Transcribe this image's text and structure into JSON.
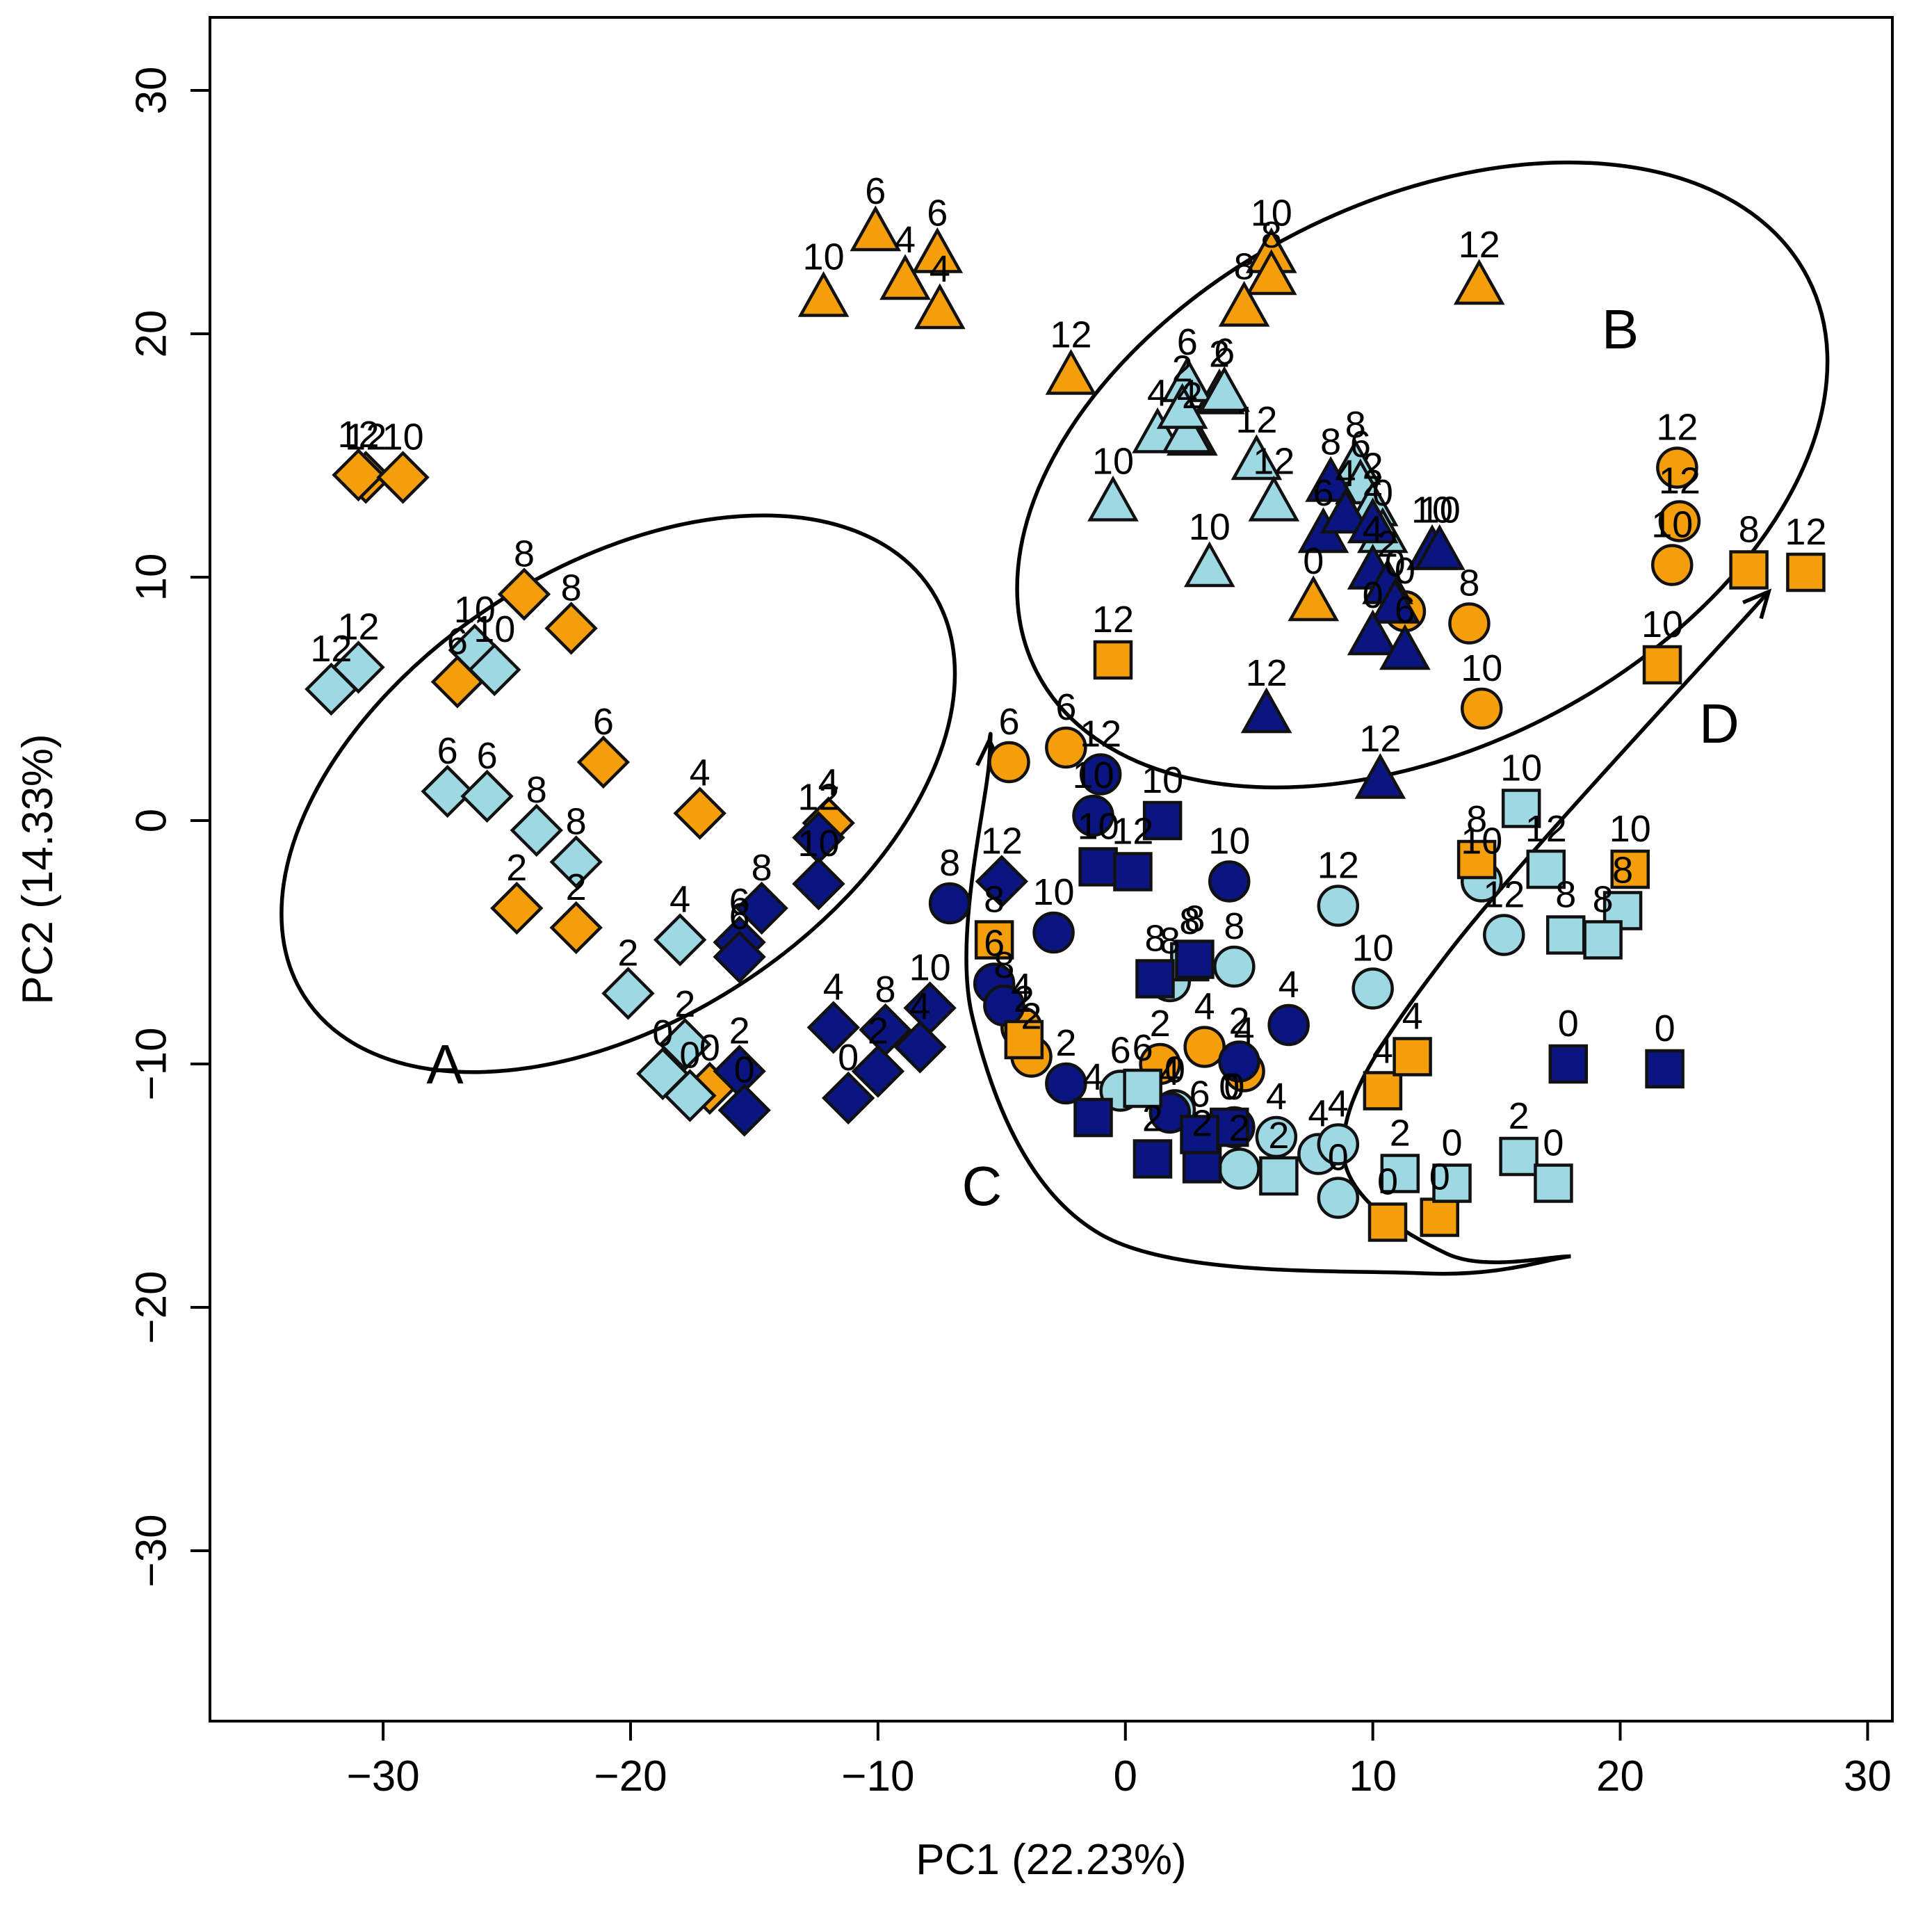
{
  "chart_data": {
    "type": "scatter",
    "xlabel": "PC1 (22.23%)",
    "ylabel": "PC2 (14.33%)",
    "xlim": [
      -37,
      31
    ],
    "ylim": [
      -37,
      33
    ],
    "xticks": [
      -30,
      -20,
      -10,
      0,
      10,
      20,
      30
    ],
    "yticks": [
      -30,
      -20,
      -10,
      0,
      10,
      20,
      30
    ],
    "grid": false,
    "colors": {
      "orange": "#F59E0B",
      "lightblue": "#9ED8E2",
      "navy": "#0A1580",
      "outline": "#111111"
    },
    "region_labels": [
      {
        "text": "A",
        "x": -27.5,
        "y": -10.2
      },
      {
        "text": "B",
        "x": 20.0,
        "y": 20.0
      },
      {
        "text": "C",
        "x": -5.8,
        "y": -15.2
      },
      {
        "text": "D",
        "x": 24.0,
        "y": 3.8
      }
    ],
    "ellipses": [
      {
        "name": "A",
        "cx": -20.5,
        "cy": 1.1,
        "rx": 15.1,
        "ry": 9.3,
        "angle_deg": 33
      },
      {
        "name": "B",
        "cx": 12.0,
        "cy": 14.2,
        "rx": 17.5,
        "ry": 11.2,
        "angle_deg": 27
      }
    ],
    "curves": [
      {
        "name": "C",
        "points": [
          [
            18,
            -17.9
          ],
          [
            12,
            -18.6
          ],
          [
            -1,
            -17.0
          ],
          [
            -6.2,
            -8.0
          ],
          [
            -5.5,
            2.5
          ],
          [
            -5.5,
            3.3
          ]
        ],
        "arrow": true
      },
      {
        "name": "D",
        "points": [
          [
            18,
            -17.9
          ],
          [
            13,
            -17.8
          ],
          [
            8.8,
            -13.5
          ],
          [
            13,
            -5.5
          ],
          [
            26.0,
            9.4
          ]
        ],
        "arrow": true
      }
    ],
    "series": [
      {
        "shape": "diamond",
        "color": "orange",
        "points": [
          [
            -30.7,
            14.1,
            "12"
          ],
          [
            -31.0,
            14.2,
            "12"
          ],
          [
            -29.2,
            14.1,
            "10"
          ],
          [
            -24.3,
            9.3,
            "8"
          ],
          [
            -22.4,
            7.9,
            "8"
          ],
          [
            -27.0,
            5.7,
            "6"
          ],
          [
            -21.1,
            2.4,
            "6"
          ],
          [
            -17.2,
            0.3,
            "4"
          ],
          [
            -12.0,
            -0.1,
            "4"
          ],
          [
            -24.6,
            -3.6,
            "2"
          ],
          [
            -22.2,
            -4.4,
            "2"
          ],
          [
            -16.8,
            -11.0,
            "0"
          ]
        ]
      },
      {
        "shape": "diamond",
        "color": "lightblue",
        "points": [
          [
            -31.0,
            6.3,
            "12"
          ],
          [
            -32.1,
            5.4,
            "12"
          ],
          [
            -26.3,
            7.0,
            "10"
          ],
          [
            -25.5,
            6.2,
            "10"
          ],
          [
            -27.4,
            1.2,
            "6"
          ],
          [
            -25.8,
            1.0,
            "6"
          ],
          [
            -23.8,
            -0.4,
            "8"
          ],
          [
            -22.2,
            -1.7,
            "8"
          ],
          [
            -18.0,
            -4.9,
            "4"
          ],
          [
            -20.1,
            -7.1,
            "2"
          ],
          [
            -17.8,
            -9.2,
            "2"
          ],
          [
            -18.7,
            -10.4,
            "0"
          ],
          [
            -17.6,
            -11.3,
            "0"
          ]
        ]
      },
      {
        "shape": "diamond",
        "color": "navy",
        "points": [
          [
            -12.4,
            -0.7,
            "12"
          ],
          [
            -12.4,
            -2.6,
            "10"
          ],
          [
            -14.7,
            -3.6,
            "8"
          ],
          [
            -15.6,
            -5.0,
            "6"
          ],
          [
            -15.6,
            -5.6,
            "6"
          ],
          [
            -5.0,
            -2.5,
            "12"
          ],
          [
            -11.8,
            -8.5,
            "4"
          ],
          [
            -9.7,
            -8.6,
            "8"
          ],
          [
            -8.3,
            -9.3,
            "4"
          ],
          [
            -7.9,
            -7.7,
            "10"
          ],
          [
            -15.6,
            -10.3,
            "2"
          ],
          [
            -10.0,
            -10.3,
            "2"
          ],
          [
            -11.2,
            -11.4,
            "0"
          ],
          [
            -15.4,
            -11.9,
            "0"
          ]
        ]
      },
      {
        "shape": "circle",
        "color": "orange",
        "points": [
          [
            22.3,
            14.5,
            "12"
          ],
          [
            22.4,
            12.3,
            "12"
          ],
          [
            22.1,
            10.5,
            "10"
          ],
          [
            13.9,
            8.1,
            "8"
          ],
          [
            14.4,
            4.6,
            "10"
          ],
          [
            -4.7,
            2.4,
            "6"
          ],
          [
            -2.4,
            3.0,
            "6"
          ],
          [
            11.3,
            8.6,
            "0"
          ],
          [
            -3.8,
            -9.7,
            "2"
          ],
          [
            -4.2,
            -8.5,
            "4"
          ],
          [
            1.4,
            -10.0,
            "2"
          ],
          [
            3.2,
            -9.3,
            "4"
          ],
          [
            4.8,
            -10.3,
            "4"
          ]
        ]
      },
      {
        "shape": "circle",
        "color": "lightblue",
        "points": [
          [
            8.6,
            -3.5,
            "12"
          ],
          [
            14.4,
            -2.5,
            "10"
          ],
          [
            15.3,
            -4.7,
            "12"
          ],
          [
            10.0,
            -6.9,
            "10"
          ],
          [
            4.4,
            -6.0,
            "8"
          ],
          [
            1.8,
            -6.6,
            "8"
          ],
          [
            -0.2,
            -11.1,
            "6"
          ],
          [
            2.0,
            -11.9,
            "0"
          ],
          [
            4.6,
            -14.3,
            "2"
          ],
          [
            6.1,
            -13.0,
            "4"
          ],
          [
            7.8,
            -13.7,
            "4"
          ],
          [
            8.6,
            -13.3,
            "4"
          ],
          [
            8.6,
            -15.5,
            "0"
          ]
        ]
      },
      {
        "shape": "circle",
        "color": "navy",
        "points": [
          [
            -1.0,
            1.9,
            "12"
          ],
          [
            -1.3,
            0.2,
            "10"
          ],
          [
            -7.1,
            -3.4,
            "8"
          ],
          [
            -2.9,
            -4.6,
            "10"
          ],
          [
            4.2,
            -2.5,
            "10"
          ],
          [
            6.6,
            -8.4,
            "4"
          ],
          [
            -5.3,
            -6.7,
            "6"
          ],
          [
            -4.9,
            -7.6,
            "8"
          ],
          [
            -2.4,
            -10.8,
            "2"
          ],
          [
            1.8,
            -12.0,
            "4"
          ],
          [
            4.6,
            -9.9,
            "2"
          ],
          [
            4.4,
            -12.6,
            "0"
          ]
        ]
      },
      {
        "shape": "square",
        "color": "orange",
        "points": [
          [
            -0.5,
            6.6,
            "12"
          ],
          [
            25.2,
            10.3,
            "8"
          ],
          [
            27.5,
            10.2,
            "12"
          ],
          [
            21.7,
            6.4,
            "10"
          ],
          [
            20.4,
            -2.0,
            "10"
          ],
          [
            14.2,
            -1.6,
            "8"
          ],
          [
            -5.3,
            -4.9,
            "8"
          ],
          [
            -4.1,
            -9.0,
            "2"
          ],
          [
            10.4,
            -11.1,
            "4"
          ],
          [
            11.6,
            -9.7,
            "4"
          ],
          [
            10.6,
            -16.5,
            "0"
          ],
          [
            12.7,
            -16.3,
            "0"
          ]
        ]
      },
      {
        "shape": "square",
        "color": "lightblue",
        "points": [
          [
            16.0,
            0.5,
            "10"
          ],
          [
            17.0,
            -2.0,
            "12"
          ],
          [
            20.1,
            -3.7,
            "8"
          ],
          [
            17.8,
            -4.7,
            "8"
          ],
          [
            19.3,
            -4.9,
            "8"
          ],
          [
            2.6,
            -5.8,
            "8"
          ],
          [
            6.2,
            -14.6,
            "2"
          ],
          [
            11.1,
            -14.5,
            "2"
          ],
          [
            13.2,
            -14.9,
            "0"
          ],
          [
            15.9,
            -13.8,
            "2"
          ],
          [
            17.3,
            -14.9,
            "0"
          ],
          [
            0.7,
            -11.0,
            "6"
          ]
        ]
      },
      {
        "shape": "square",
        "color": "navy",
        "points": [
          [
            1.5,
            0.0,
            "10"
          ],
          [
            -1.1,
            -1.9,
            "10"
          ],
          [
            0.3,
            -2.1,
            "12"
          ],
          [
            1.2,
            -6.5,
            "8"
          ],
          [
            2.8,
            -5.7,
            "8"
          ],
          [
            17.9,
            -10.0,
            "0"
          ],
          [
            21.8,
            -10.2,
            "0"
          ],
          [
            -1.3,
            -12.2,
            "4"
          ],
          [
            1.1,
            -13.9,
            "2"
          ],
          [
            3.1,
            -14.1,
            "2"
          ],
          [
            4.2,
            -12.6,
            "0"
          ],
          [
            3.0,
            -12.9,
            "6"
          ]
        ]
      },
      {
        "shape": "triangle",
        "color": "orange",
        "points": [
          [
            -10.1,
            24.2,
            "6"
          ],
          [
            -7.6,
            23.3,
            "6"
          ],
          [
            -8.9,
            22.2,
            "4"
          ],
          [
            -7.5,
            21.0,
            "4"
          ],
          [
            -12.2,
            21.5,
            "10"
          ],
          [
            5.9,
            23.3,
            "10"
          ],
          [
            5.9,
            22.4,
            "8"
          ],
          [
            4.8,
            21.1,
            "8"
          ],
          [
            14.3,
            22.0,
            "12"
          ],
          [
            -2.2,
            18.3,
            "12"
          ],
          [
            3.8,
            17.5,
            "2"
          ],
          [
            2.7,
            15.8,
            "2"
          ],
          [
            7.6,
            9.0,
            "0"
          ]
        ]
      },
      {
        "shape": "triangle",
        "color": "lightblue",
        "points": [
          [
            2.5,
            18.0,
            "6"
          ],
          [
            4.0,
            17.6,
            "6"
          ],
          [
            1.3,
            15.9,
            "4"
          ],
          [
            2.5,
            15.9,
            "4"
          ],
          [
            2.3,
            16.9,
            "2"
          ],
          [
            -0.5,
            13.1,
            "10"
          ],
          [
            3.4,
            10.4,
            "10"
          ],
          [
            5.3,
            14.8,
            "12"
          ],
          [
            6.0,
            13.1,
            "12"
          ],
          [
            9.3,
            14.6,
            "8"
          ],
          [
            9.5,
            13.8,
            "6"
          ],
          [
            10.0,
            12.9,
            "2"
          ],
          [
            10.4,
            11.8,
            "0"
          ]
        ]
      },
      {
        "shape": "triangle",
        "color": "navy",
        "points": [
          [
            8.3,
            13.9,
            "8"
          ],
          [
            8.0,
            11.8,
            "6"
          ],
          [
            8.9,
            12.6,
            "4"
          ],
          [
            10.0,
            12.2,
            "2"
          ],
          [
            12.4,
            11.1,
            "10"
          ],
          [
            12.7,
            11.1,
            "10"
          ],
          [
            10.0,
            10.3,
            "4"
          ],
          [
            10.6,
            9.7,
            "2"
          ],
          [
            10.9,
            8.9,
            "0"
          ],
          [
            10.0,
            7.6,
            "0"
          ],
          [
            11.3,
            7.0,
            "6"
          ],
          [
            5.7,
            4.4,
            "12"
          ],
          [
            10.3,
            1.7,
            "12"
          ]
        ]
      }
    ]
  }
}
